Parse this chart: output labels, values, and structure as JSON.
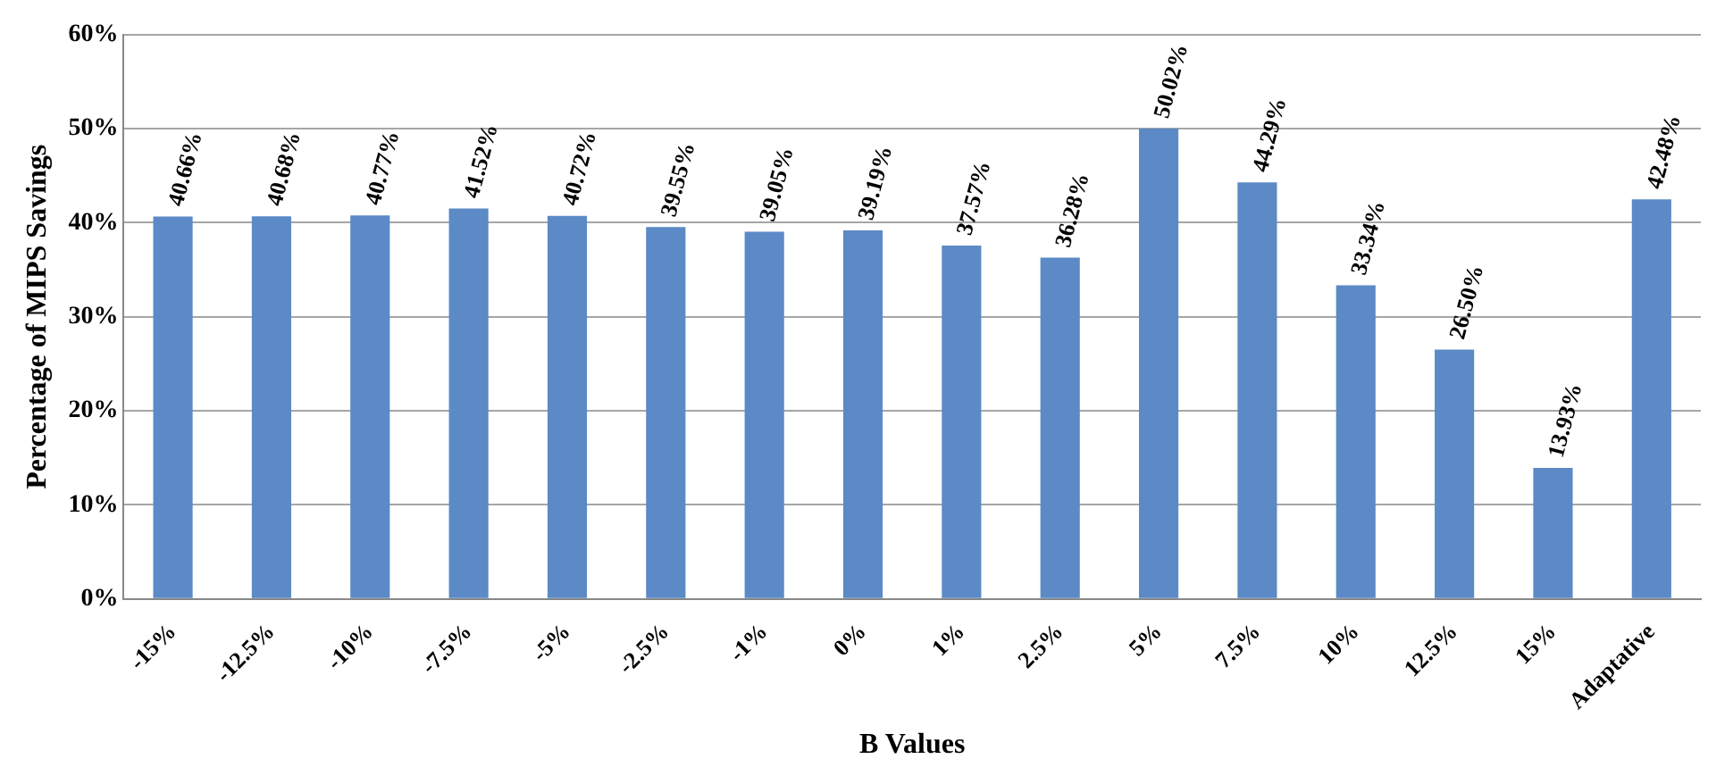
{
  "chart_data": {
    "type": "bar",
    "xlabel": "B Values",
    "ylabel": "Percentage of MIPS Savings",
    "categories": [
      "-15%",
      "-12.5%",
      "-10%",
      "-7.5%",
      "-5%",
      "-2.5%",
      "-1%",
      "0%",
      "1%",
      "2.5%",
      "5%",
      "7.5%",
      "10%",
      "12.5%",
      "15%",
      "Adaptative"
    ],
    "values": [
      40.66,
      40.68,
      40.77,
      41.52,
      40.72,
      39.55,
      39.05,
      39.19,
      37.57,
      36.28,
      50.02,
      44.29,
      33.34,
      26.5,
      13.93,
      42.48
    ],
    "value_labels": [
      "40.66%",
      "40.68%",
      "40.77%",
      "41.52%",
      "40.72%",
      "39.55%",
      "39.05%",
      "39.19%",
      "37.57%",
      "36.28%",
      "50.02%",
      "44.29%",
      "33.34%",
      "26.50%",
      "13.93%",
      "42.48%"
    ],
    "color": "#5b8ac6",
    "ylim": [
      0,
      60
    ],
    "yticks": [
      {
        "value": 0,
        "label": "0%"
      },
      {
        "value": 10,
        "label": "10%"
      },
      {
        "value": 20,
        "label": "20%"
      },
      {
        "value": 30,
        "label": "30%"
      },
      {
        "value": 40,
        "label": "40%"
      },
      {
        "value": 50,
        "label": "50%"
      },
      {
        "value": 60,
        "label": "60%"
      }
    ],
    "grid": "y",
    "legend": false
  }
}
